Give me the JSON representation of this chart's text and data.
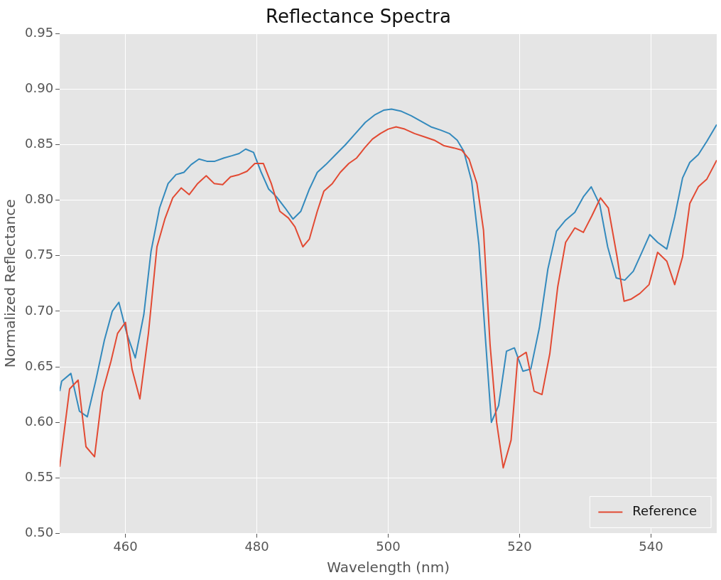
{
  "chart_data": {
    "type": "line",
    "title": "Reflectance Spectra",
    "xlabel": "Wavelength (nm)",
    "ylabel": "Normalized Reflectance",
    "xlim": [
      450,
      550
    ],
    "xticks": [
      460,
      480,
      500,
      520,
      540
    ],
    "ylim": [
      0.5,
      0.95
    ],
    "yticks": [
      {
        "value": 0.5,
        "label": "0.50"
      },
      0.55,
      {
        "value": 0.6,
        "label": "0.60"
      },
      0.65,
      {
        "value": 0.7,
        "label": "0.70"
      },
      0.75,
      {
        "value": 0.8,
        "label": "0.80"
      },
      0.85,
      {
        "value": 0.9,
        "label": "0.90"
      },
      0.95
    ],
    "grid": true,
    "legend": "bottom right",
    "marker": "none",
    "line_style": "solid",
    "series": [
      {
        "name": "Reference",
        "color": "#e24a33",
        "x": [
          450,
          451.5,
          452.8,
          454,
          455.3,
          456.5,
          457.8,
          458.8,
          460,
          461,
          462.2,
          463.5,
          464.8,
          466,
          467.2,
          468.5,
          469.7,
          471,
          472.3,
          473.5,
          474.8,
          476,
          477.3,
          478.5,
          479.7,
          481,
          482.2,
          483.5,
          484.8,
          485.8,
          487,
          488,
          489.2,
          490.2,
          491.5,
          492.7,
          494,
          495.2,
          496.4,
          497.6,
          498.8,
          500,
          501.2,
          502.5,
          504,
          505.5,
          507,
          508.5,
          510,
          511.2,
          512.3,
          513.5,
          514.5,
          515.5,
          516.5,
          517.5,
          518.7,
          519.7,
          521,
          522.2,
          523.4,
          524.6,
          525.8,
          527,
          528.4,
          529.7,
          531,
          532.3,
          533.5,
          534.8,
          535.9,
          537,
          538.3,
          539.7,
          541,
          542.4,
          543.6,
          544.8,
          545.9,
          547.2,
          548.5,
          550
        ],
        "values": [
          0.56,
          0.63,
          0.638,
          0.578,
          0.569,
          0.627,
          0.655,
          0.68,
          0.69,
          0.648,
          0.621,
          0.68,
          0.758,
          0.783,
          0.802,
          0.811,
          0.805,
          0.815,
          0.822,
          0.815,
          0.814,
          0.821,
          0.823,
          0.826,
          0.833,
          0.833,
          0.815,
          0.79,
          0.784,
          0.776,
          0.758,
          0.765,
          0.79,
          0.808,
          0.815,
          0.825,
          0.833,
          0.838,
          0.847,
          0.855,
          0.86,
          0.864,
          0.866,
          0.864,
          0.86,
          0.857,
          0.854,
          0.849,
          0.847,
          0.845,
          0.837,
          0.815,
          0.773,
          0.67,
          0.6,
          0.559,
          0.584,
          0.658,
          0.663,
          0.628,
          0.625,
          0.662,
          0.722,
          0.762,
          0.775,
          0.771,
          0.786,
          0.802,
          0.793,
          0.75,
          0.709,
          0.711,
          0.716,
          0.724,
          0.753,
          0.745,
          0.724,
          0.749,
          0.797,
          0.812,
          0.819,
          0.836
        ]
      },
      {
        "color": "#348abd",
        "x": [
          450,
          450.3,
          451.7,
          453,
          454.2,
          455.5,
          456.8,
          458,
          459,
          460.2,
          461.5,
          462.8,
          463.9,
          465.2,
          466.5,
          467.7,
          468.9,
          470,
          471.2,
          472.4,
          473.6,
          475,
          476.2,
          477.3,
          478.3,
          479.5,
          480.6,
          481.8,
          483,
          484.3,
          485.5,
          486.7,
          488,
          489.2,
          490.5,
          492,
          493.5,
          495,
          496.5,
          498,
          499.3,
          500.5,
          502,
          503.5,
          505,
          506.5,
          508,
          509.3,
          510.5,
          511.5,
          512.7,
          513.8,
          514.8,
          515.7,
          516.8,
          518,
          519.2,
          520.5,
          521.7,
          523,
          524.3,
          525.6,
          527,
          528.4,
          529.7,
          530.9,
          532.2,
          533.4,
          534.7,
          536,
          537.3,
          538.6,
          539.8,
          541,
          542.4,
          543.6,
          544.8,
          545.9,
          547.2,
          548.5,
          550
        ],
        "values": [
          0.628,
          0.637,
          0.644,
          0.61,
          0.605,
          0.638,
          0.674,
          0.7,
          0.708,
          0.68,
          0.658,
          0.697,
          0.754,
          0.793,
          0.815,
          0.823,
          0.825,
          0.832,
          0.837,
          0.835,
          0.835,
          0.838,
          0.84,
          0.842,
          0.846,
          0.843,
          0.826,
          0.81,
          0.803,
          0.793,
          0.783,
          0.79,
          0.81,
          0.825,
          0.832,
          0.841,
          0.85,
          0.86,
          0.87,
          0.877,
          0.881,
          0.882,
          0.88,
          0.876,
          0.871,
          0.866,
          0.863,
          0.86,
          0.854,
          0.844,
          0.817,
          0.76,
          0.675,
          0.6,
          0.615,
          0.664,
          0.667,
          0.646,
          0.648,
          0.685,
          0.738,
          0.772,
          0.782,
          0.789,
          0.803,
          0.812,
          0.796,
          0.758,
          0.73,
          0.728,
          0.736,
          0.753,
          0.769,
          0.762,
          0.756,
          0.785,
          0.82,
          0.834,
          0.841,
          0.853,
          0.868
        ]
      }
    ]
  }
}
